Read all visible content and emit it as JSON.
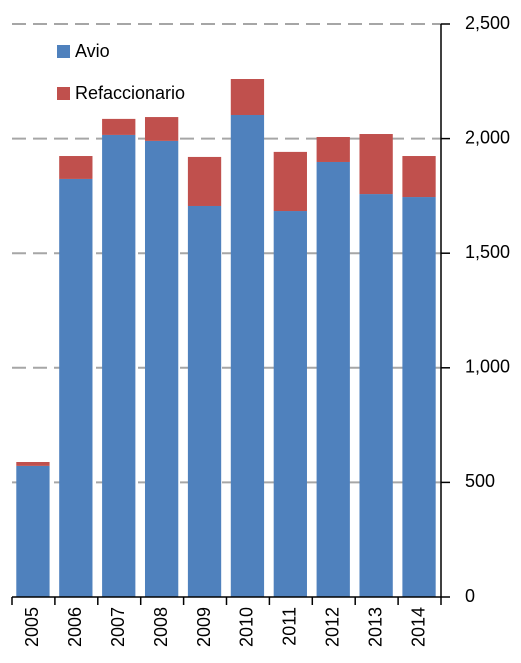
{
  "chart_data": {
    "type": "stacked_bar",
    "categories": [
      "2005",
      "2006",
      "2007",
      "2008",
      "2009",
      "2010",
      "2011",
      "2012",
      "2013",
      "2014"
    ],
    "series": [
      {
        "name": "Avio",
        "color": "#4f81bd",
        "values": [
          572,
          1824,
          2016,
          1990,
          1706,
          2103,
          1684,
          1898,
          1758,
          1745
        ]
      },
      {
        "name": "Refaccionario",
        "color": "#c0504d",
        "values": [
          17,
          100,
          70,
          104,
          214,
          157,
          258,
          109,
          262,
          179
        ]
      }
    ],
    "ylim": [
      0,
      2500
    ],
    "yticks": [
      0,
      500,
      {
        "value": 1000,
        "label": "1,000"
      },
      {
        "value": 1500,
        "label": "1,500"
      },
      {
        "value": 2000,
        "label": "2,000"
      },
      {
        "value": 2500,
        "label": "2,500"
      }
    ],
    "grid": true,
    "legend": "top-left",
    "axis_side": "right"
  }
}
